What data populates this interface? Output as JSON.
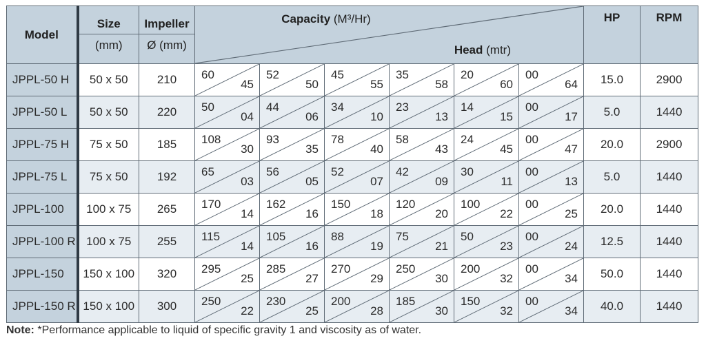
{
  "header": {
    "model": "Model",
    "size": "Size",
    "size_unit": "(mm)",
    "impeller": "Impeller",
    "impeller_unit": "Ø (mm)",
    "capacity": "Capacity",
    "capacity_unit": "(M³/Hr)",
    "head": "Head",
    "head_unit": "(mtr)",
    "hp": "HP",
    "rpm": "RPM"
  },
  "rows": [
    {
      "model": "JPPL-50 H",
      "size": "50 x 50",
      "impeller": "210",
      "points": [
        [
          "60",
          "45"
        ],
        [
          "52",
          "50"
        ],
        [
          "45",
          "55"
        ],
        [
          "35",
          "58"
        ],
        [
          "20",
          "60"
        ],
        [
          "00",
          "64"
        ]
      ],
      "hp": "15.0",
      "rpm": "2900"
    },
    {
      "model": "JPPL-50 L",
      "size": "50 x 50",
      "impeller": "220",
      "points": [
        [
          "50",
          "04"
        ],
        [
          "44",
          "06"
        ],
        [
          "34",
          "10"
        ],
        [
          "23",
          "13"
        ],
        [
          "14",
          "15"
        ],
        [
          "00",
          "17"
        ]
      ],
      "hp": "5.0",
      "rpm": "1440"
    },
    {
      "model": "JPPL-75 H",
      "size": "75 x 50",
      "impeller": "185",
      "points": [
        [
          "108",
          "30"
        ],
        [
          "93",
          "35"
        ],
        [
          "78",
          "40"
        ],
        [
          "58",
          "43"
        ],
        [
          "24",
          "45"
        ],
        [
          "00",
          "47"
        ]
      ],
      "hp": "20.0",
      "rpm": "2900"
    },
    {
      "model": "JPPL-75 L",
      "size": "75 x 50",
      "impeller": "192",
      "points": [
        [
          "65",
          "03"
        ],
        [
          "56",
          "05"
        ],
        [
          "52",
          "07"
        ],
        [
          "42",
          "09"
        ],
        [
          "30",
          "11"
        ],
        [
          "00",
          "13"
        ]
      ],
      "hp": "5.0",
      "rpm": "1440"
    },
    {
      "model": "JPPL-100",
      "size": "100 x 75",
      "impeller": "265",
      "points": [
        [
          "170",
          "14"
        ],
        [
          "162",
          "16"
        ],
        [
          "150",
          "18"
        ],
        [
          "120",
          "20"
        ],
        [
          "100",
          "22"
        ],
        [
          "00",
          "25"
        ]
      ],
      "hp": "20.0",
      "rpm": "1440"
    },
    {
      "model": "JPPL-100 R",
      "size": "100 x 75",
      "impeller": "255",
      "points": [
        [
          "115",
          "14"
        ],
        [
          "105",
          "16"
        ],
        [
          "88",
          "19"
        ],
        [
          "75",
          "21"
        ],
        [
          "50",
          "23"
        ],
        [
          "00",
          "24"
        ]
      ],
      "hp": "12.5",
      "rpm": "1440"
    },
    {
      "model": "JPPL-150",
      "size": "150 x 100",
      "impeller": "320",
      "points": [
        [
          "295",
          "25"
        ],
        [
          "285",
          "27"
        ],
        [
          "270",
          "29"
        ],
        [
          "250",
          "30"
        ],
        [
          "200",
          "32"
        ],
        [
          "00",
          "34"
        ]
      ],
      "hp": "50.0",
      "rpm": "1440"
    },
    {
      "model": "JPPL-150 R",
      "size": "150 x 100",
      "impeller": "300",
      "points": [
        [
          "250",
          "22"
        ],
        [
          "230",
          "25"
        ],
        [
          "200",
          "28"
        ],
        [
          "185",
          "30"
        ],
        [
          "150",
          "32"
        ],
        [
          "00",
          "34"
        ]
      ],
      "hp": "40.0",
      "rpm": "1440"
    }
  ],
  "note": {
    "label": "Note:",
    "text": " *Performance applicable to liquid of specific gravity 1 and viscosity as of water."
  }
}
